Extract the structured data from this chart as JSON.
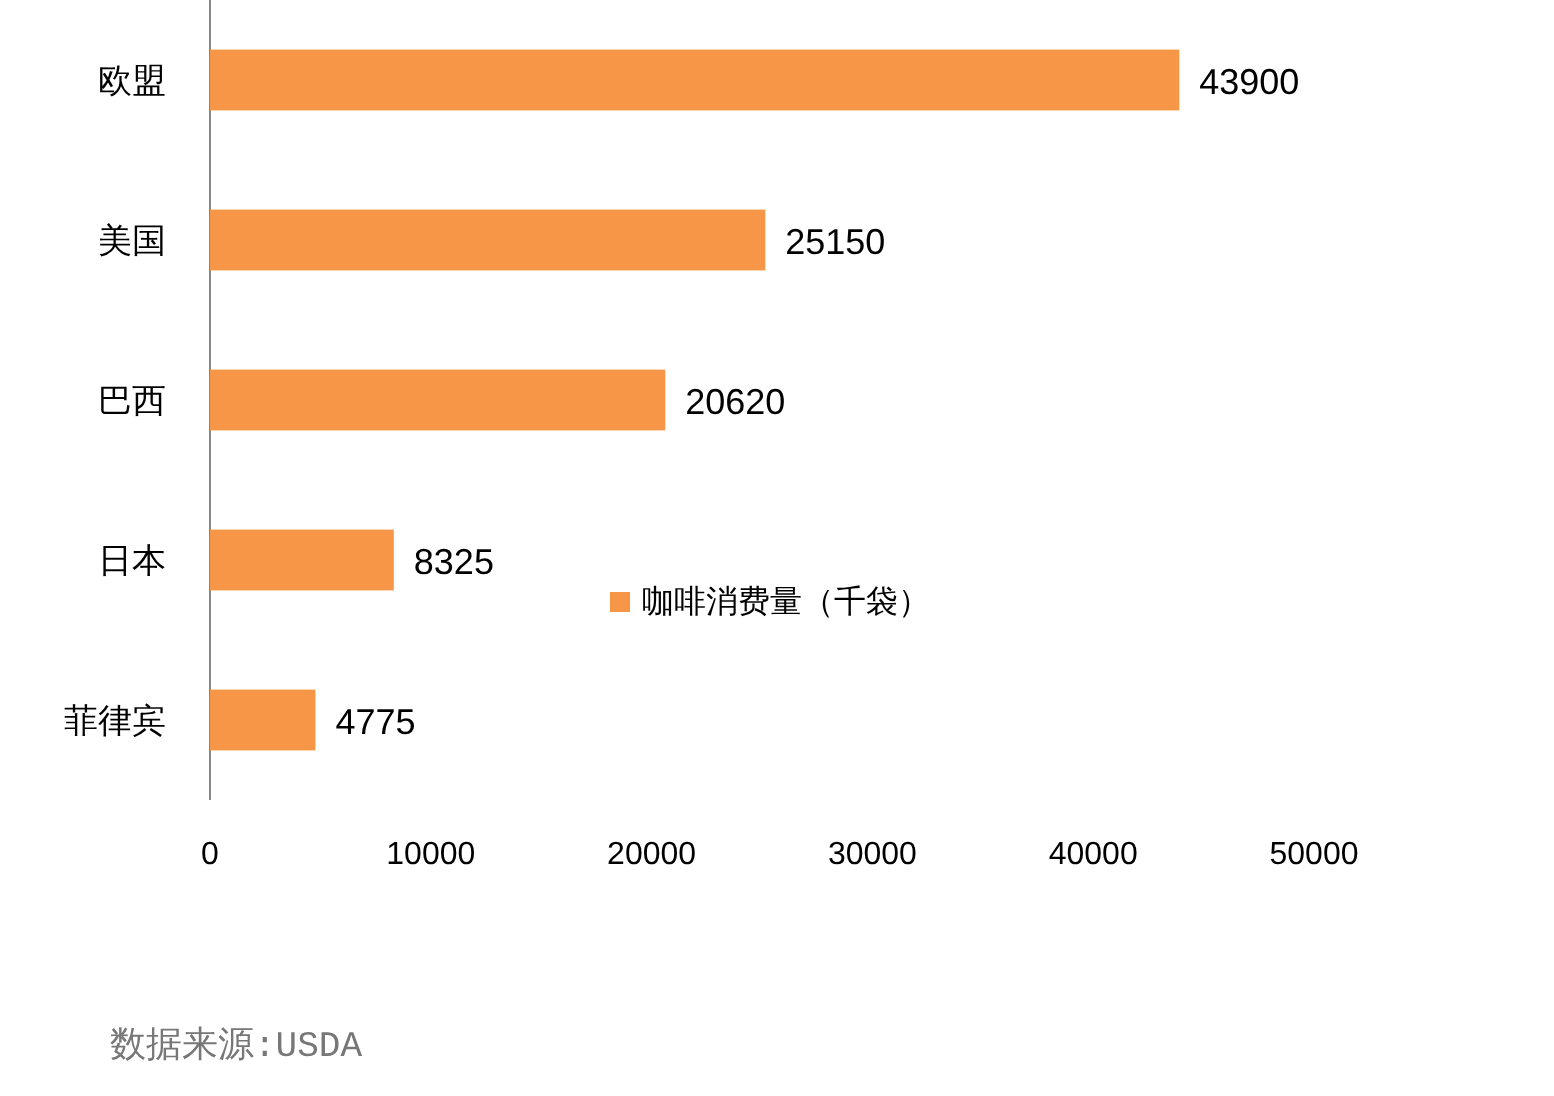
{
  "chart_data": {
    "type": "bar",
    "orientation": "horizontal",
    "categories": [
      "欧盟",
      "美国",
      "巴西",
      "日本",
      "菲律宾"
    ],
    "series": [
      {
        "name": "咖啡消费量（千袋）",
        "color": "#f79646",
        "values": [
          43900,
          25150,
          20620,
          8325,
          4775
        ]
      }
    ],
    "xlim": [
      0,
      50000
    ],
    "xticks": [
      0,
      10000,
      20000,
      30000,
      40000,
      50000
    ],
    "data_labels": true,
    "grid": false,
    "legend": "bottom",
    "annotations": [
      "数据来源:USDA"
    ]
  }
}
